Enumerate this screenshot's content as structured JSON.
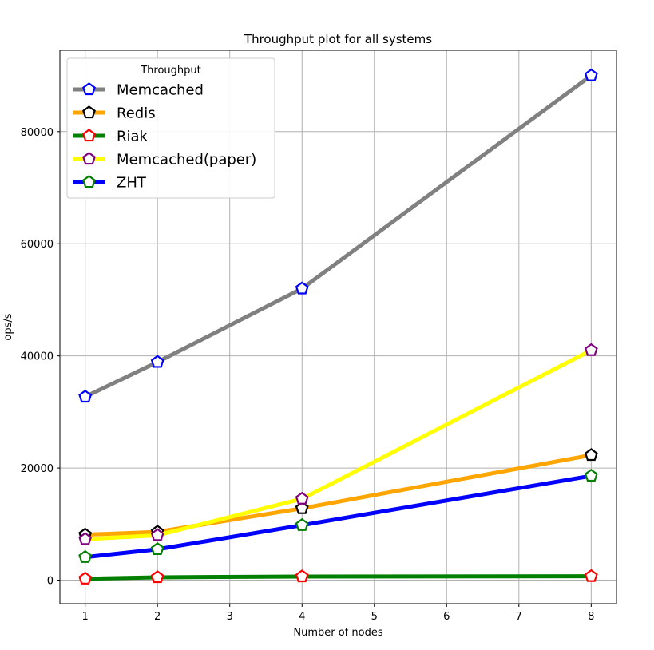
{
  "chart_data": {
    "type": "line",
    "title": "Throughput plot for all systems",
    "xlabel": "Number of nodes",
    "ylabel": "ops/s",
    "xlim": [
      0.65,
      8.35
    ],
    "ylim": [
      -4200,
      94500
    ],
    "xticks": [
      1,
      2,
      3,
      4,
      5,
      6,
      7,
      8
    ],
    "yticks": [
      0,
      20000,
      40000,
      60000,
      80000
    ],
    "grid": true,
    "legend": {
      "title": "Throughput",
      "placement": "top-left"
    },
    "x": [
      1,
      2,
      4,
      8
    ],
    "series": [
      {
        "name": "Memcached",
        "values": [
          32700,
          38900,
          52000,
          90000
        ],
        "line_color": "#808080",
        "marker_edge": "#0000ff"
      },
      {
        "name": "Redis",
        "values": [
          8100,
          8600,
          12800,
          22300
        ],
        "line_color": "#ffa500",
        "marker_edge": "#000000"
      },
      {
        "name": "Riak",
        "values": [
          250,
          500,
          650,
          700
        ],
        "line_color": "#008000",
        "marker_edge": "#ff0000"
      },
      {
        "name": "Memcached(paper)",
        "values": [
          7300,
          8000,
          14500,
          41000
        ],
        "line_color": "#ffff00",
        "marker_edge": "#800080"
      },
      {
        "name": "ZHT",
        "values": [
          4100,
          5500,
          9800,
          18600
        ],
        "line_color": "#0000ff",
        "marker_edge": "#008000"
      }
    ]
  }
}
